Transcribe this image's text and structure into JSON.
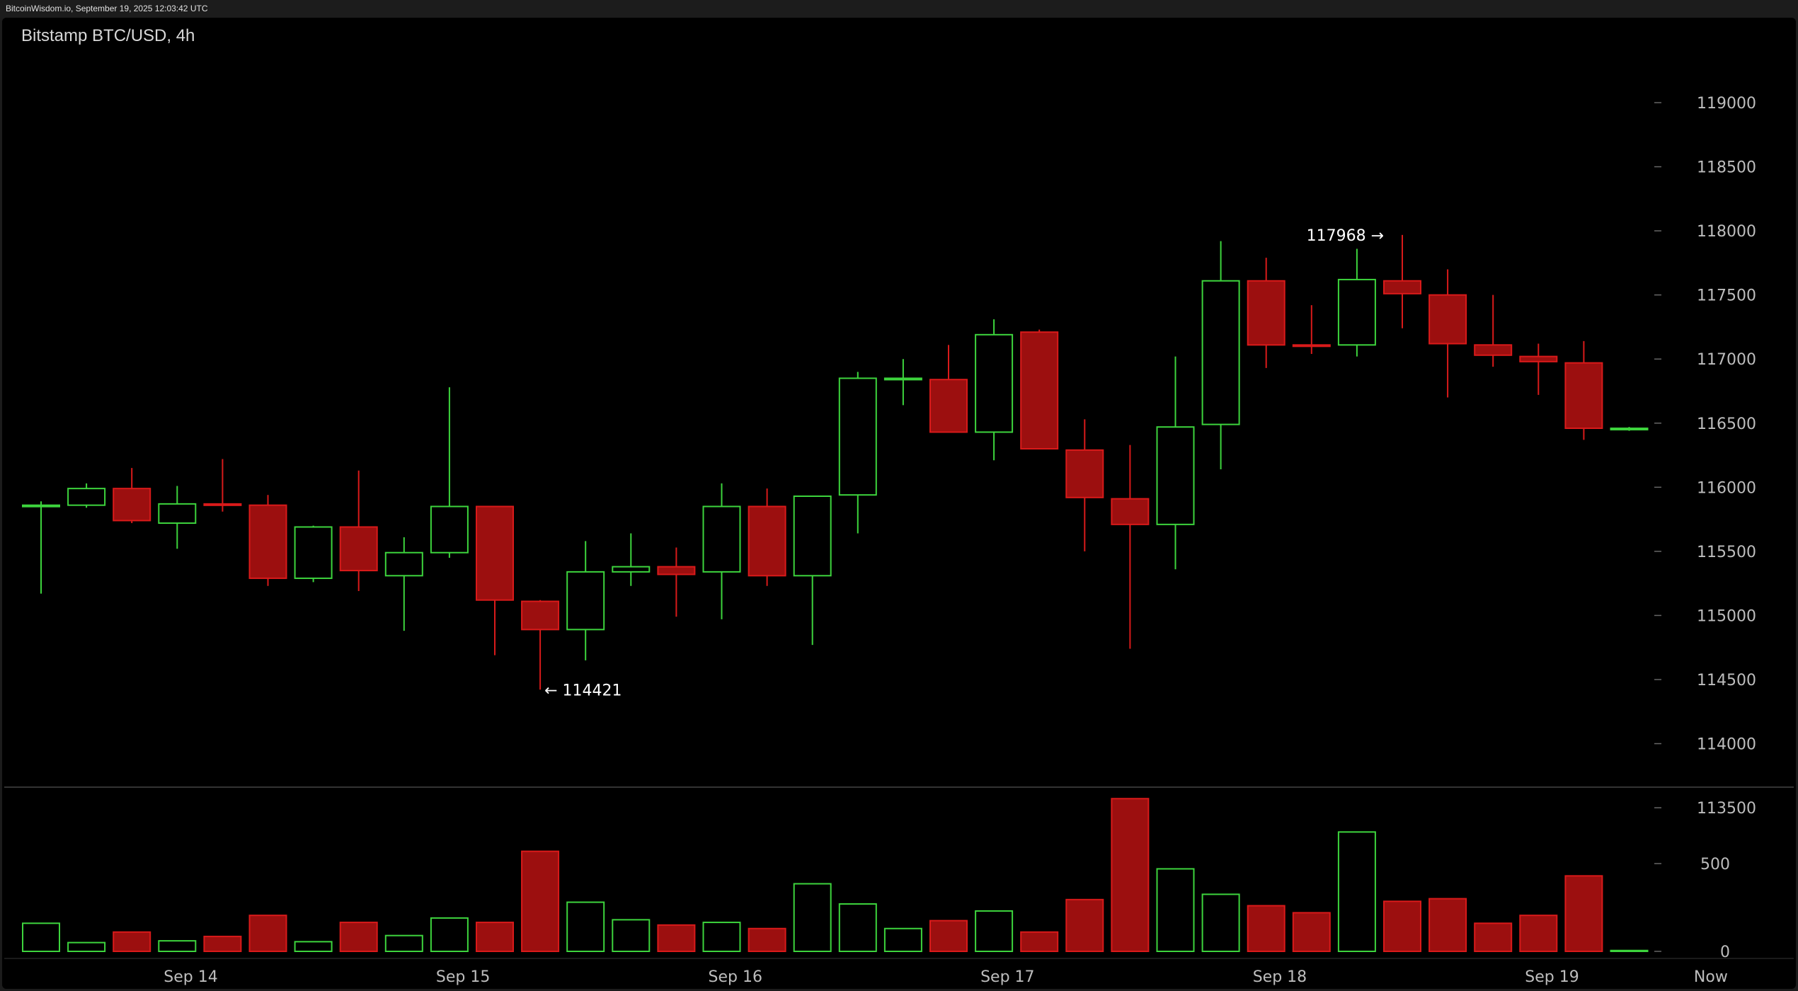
{
  "header": {
    "text": "BitcoinWisdom.io, September 19, 2025 12:03:42 UTC"
  },
  "chart_data": {
    "type": "candlestick",
    "title": "Bitstamp BTC/USD, 4h",
    "price_axis": {
      "ticks": [
        113500,
        114000,
        114500,
        115000,
        115500,
        116000,
        116500,
        117000,
        117500,
        118000,
        118500,
        119000
      ]
    },
    "volume_axis": {
      "ticks": [
        0,
        500
      ]
    },
    "x_labels": [
      {
        "label": "Sep 14",
        "index": 3.3
      },
      {
        "label": "Sep 15",
        "index": 9.3
      },
      {
        "label": "Sep 16",
        "index": 15.3
      },
      {
        "label": "Sep 17",
        "index": 21.3
      },
      {
        "label": "Sep 18",
        "index": 27.3
      },
      {
        "label": "Sep 19",
        "index": 33.3
      },
      {
        "label": "Now",
        "index": 36.8
      }
    ],
    "annotations": [
      {
        "text": "117968 →",
        "index": 30,
        "price": 117968,
        "side": "left"
      },
      {
        "text": "← 114421",
        "index": 11,
        "price": 114421,
        "side": "right"
      }
    ],
    "candles": [
      {
        "o": 115850,
        "h": 115890,
        "l": 115170,
        "c": 115860,
        "v": 160
      },
      {
        "o": 115860,
        "h": 116030,
        "l": 115840,
        "c": 115990,
        "v": 50
      },
      {
        "o": 115990,
        "h": 116150,
        "l": 115720,
        "c": 115740,
        "v": 110
      },
      {
        "o": 115720,
        "h": 116010,
        "l": 115520,
        "c": 115870,
        "v": 60
      },
      {
        "o": 115870,
        "h": 116220,
        "l": 115810,
        "c": 115860,
        "v": 85
      },
      {
        "o": 115860,
        "h": 115940,
        "l": 115230,
        "c": 115290,
        "v": 205
      },
      {
        "o": 115290,
        "h": 115700,
        "l": 115260,
        "c": 115690,
        "v": 55
      },
      {
        "o": 115690,
        "h": 116130,
        "l": 115190,
        "c": 115350,
        "v": 165
      },
      {
        "o": 115310,
        "h": 115610,
        "l": 114880,
        "c": 115490,
        "v": 90
      },
      {
        "o": 115490,
        "h": 116780,
        "l": 115450,
        "c": 115850,
        "v": 190
      },
      {
        "o": 115850,
        "h": 115850,
        "l": 114690,
        "c": 115120,
        "v": 165
      },
      {
        "o": 115110,
        "h": 115120,
        "l": 114421,
        "c": 114890,
        "v": 570
      },
      {
        "o": 114890,
        "h": 115580,
        "l": 114650,
        "c": 115340,
        "v": 280
      },
      {
        "o": 115340,
        "h": 115640,
        "l": 115230,
        "c": 115380,
        "v": 180
      },
      {
        "o": 115380,
        "h": 115530,
        "l": 114990,
        "c": 115320,
        "v": 150
      },
      {
        "o": 115340,
        "h": 116030,
        "l": 114970,
        "c": 115850,
        "v": 165
      },
      {
        "o": 115850,
        "h": 115990,
        "l": 115230,
        "c": 115310,
        "v": 130
      },
      {
        "o": 115310,
        "h": 115930,
        "l": 114770,
        "c": 115930,
        "v": 385
      },
      {
        "o": 115940,
        "h": 116900,
        "l": 115640,
        "c": 116850,
        "v": 270
      },
      {
        "o": 116850,
        "h": 117000,
        "l": 116640,
        "c": 116850,
        "v": 130
      },
      {
        "o": 116840,
        "h": 117110,
        "l": 116430,
        "c": 116430,
        "v": 175
      },
      {
        "o": 116430,
        "h": 117310,
        "l": 116210,
        "c": 117190,
        "v": 230
      },
      {
        "o": 117210,
        "h": 117230,
        "l": 116300,
        "c": 116300,
        "v": 110
      },
      {
        "o": 116290,
        "h": 116530,
        "l": 115500,
        "c": 115920,
        "v": 295
      },
      {
        "o": 115910,
        "h": 116330,
        "l": 114740,
        "c": 115710,
        "v": 870
      },
      {
        "o": 115710,
        "h": 117020,
        "l": 115360,
        "c": 116470,
        "v": 470
      },
      {
        "o": 116490,
        "h": 117920,
        "l": 116140,
        "c": 117610,
        "v": 325
      },
      {
        "o": 117610,
        "h": 117790,
        "l": 116930,
        "c": 117110,
        "v": 260
      },
      {
        "o": 117110,
        "h": 117420,
        "l": 117040,
        "c": 117100,
        "v": 220
      },
      {
        "o": 117110,
        "h": 117860,
        "l": 117020,
        "c": 117620,
        "v": 680
      },
      {
        "o": 117610,
        "h": 117968,
        "l": 117240,
        "c": 117510,
        "v": 285
      },
      {
        "o": 117500,
        "h": 117700,
        "l": 116700,
        "c": 117120,
        "v": 300
      },
      {
        "o": 117110,
        "h": 117500,
        "l": 116940,
        "c": 117030,
        "v": 160
      },
      {
        "o": 117020,
        "h": 117120,
        "l": 116720,
        "c": 116980,
        "v": 205
      },
      {
        "o": 116970,
        "h": 117140,
        "l": 116370,
        "c": 116460,
        "v": 430
      },
      {
        "o": 116450,
        "h": 116470,
        "l": 116440,
        "c": 116460,
        "v": 5
      }
    ]
  }
}
